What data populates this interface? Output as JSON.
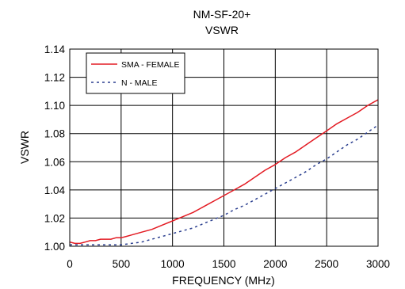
{
  "chart_data": {
    "type": "line",
    "title": "NM-SF-20+",
    "subtitle": "VSWR",
    "xlabel": "FREQUENCY (MHz)",
    "ylabel": "VSWR",
    "xlim": [
      0,
      3000
    ],
    "ylim": [
      1.0,
      1.14
    ],
    "x_ticks": [
      "0",
      "500",
      "1000",
      "1500",
      "2000",
      "2500",
      "3000"
    ],
    "y_ticks": [
      "1.00",
      "1.02",
      "1.04",
      "1.06",
      "1.08",
      "1.10",
      "1.12",
      "1.14"
    ],
    "grid": true,
    "legend_position": "top-left",
    "series": [
      {
        "name": "SMA - FEMALE",
        "color": "#e31b23",
        "style": "solid",
        "x": [
          0,
          50,
          100,
          150,
          200,
          250,
          300,
          350,
          400,
          450,
          500,
          550,
          600,
          700,
          800,
          900,
          1000,
          1100,
          1200,
          1300,
          1400,
          1500,
          1600,
          1700,
          1800,
          1900,
          2000,
          2100,
          2200,
          2300,
          2400,
          2500,
          2600,
          2700,
          2800,
          2900,
          3000
        ],
        "y": [
          1.003,
          1.002,
          1.002,
          1.003,
          1.004,
          1.004,
          1.005,
          1.005,
          1.005,
          1.006,
          1.006,
          1.007,
          1.008,
          1.01,
          1.012,
          1.015,
          1.018,
          1.021,
          1.024,
          1.028,
          1.032,
          1.036,
          1.04,
          1.044,
          1.049,
          1.054,
          1.058,
          1.063,
          1.067,
          1.072,
          1.077,
          1.082,
          1.087,
          1.091,
          1.095,
          1.1,
          1.104
        ]
      },
      {
        "name": "N - MALE",
        "color": "#2b3f8f",
        "style": "dashed",
        "x": [
          0,
          100,
          200,
          300,
          400,
          500,
          600,
          700,
          800,
          900,
          1000,
          1100,
          1200,
          1300,
          1400,
          1500,
          1600,
          1700,
          1800,
          1900,
          2000,
          2100,
          2200,
          2300,
          2400,
          2500,
          2600,
          2700,
          2800,
          2900,
          3000
        ],
        "y": [
          1.001,
          1.001,
          1.001,
          1.001,
          1.001,
          1.001,
          1.002,
          1.003,
          1.005,
          1.007,
          1.009,
          1.011,
          1.013,
          1.016,
          1.019,
          1.022,
          1.026,
          1.029,
          1.033,
          1.037,
          1.041,
          1.045,
          1.049,
          1.053,
          1.058,
          1.062,
          1.067,
          1.072,
          1.076,
          1.081,
          1.086
        ]
      }
    ]
  }
}
